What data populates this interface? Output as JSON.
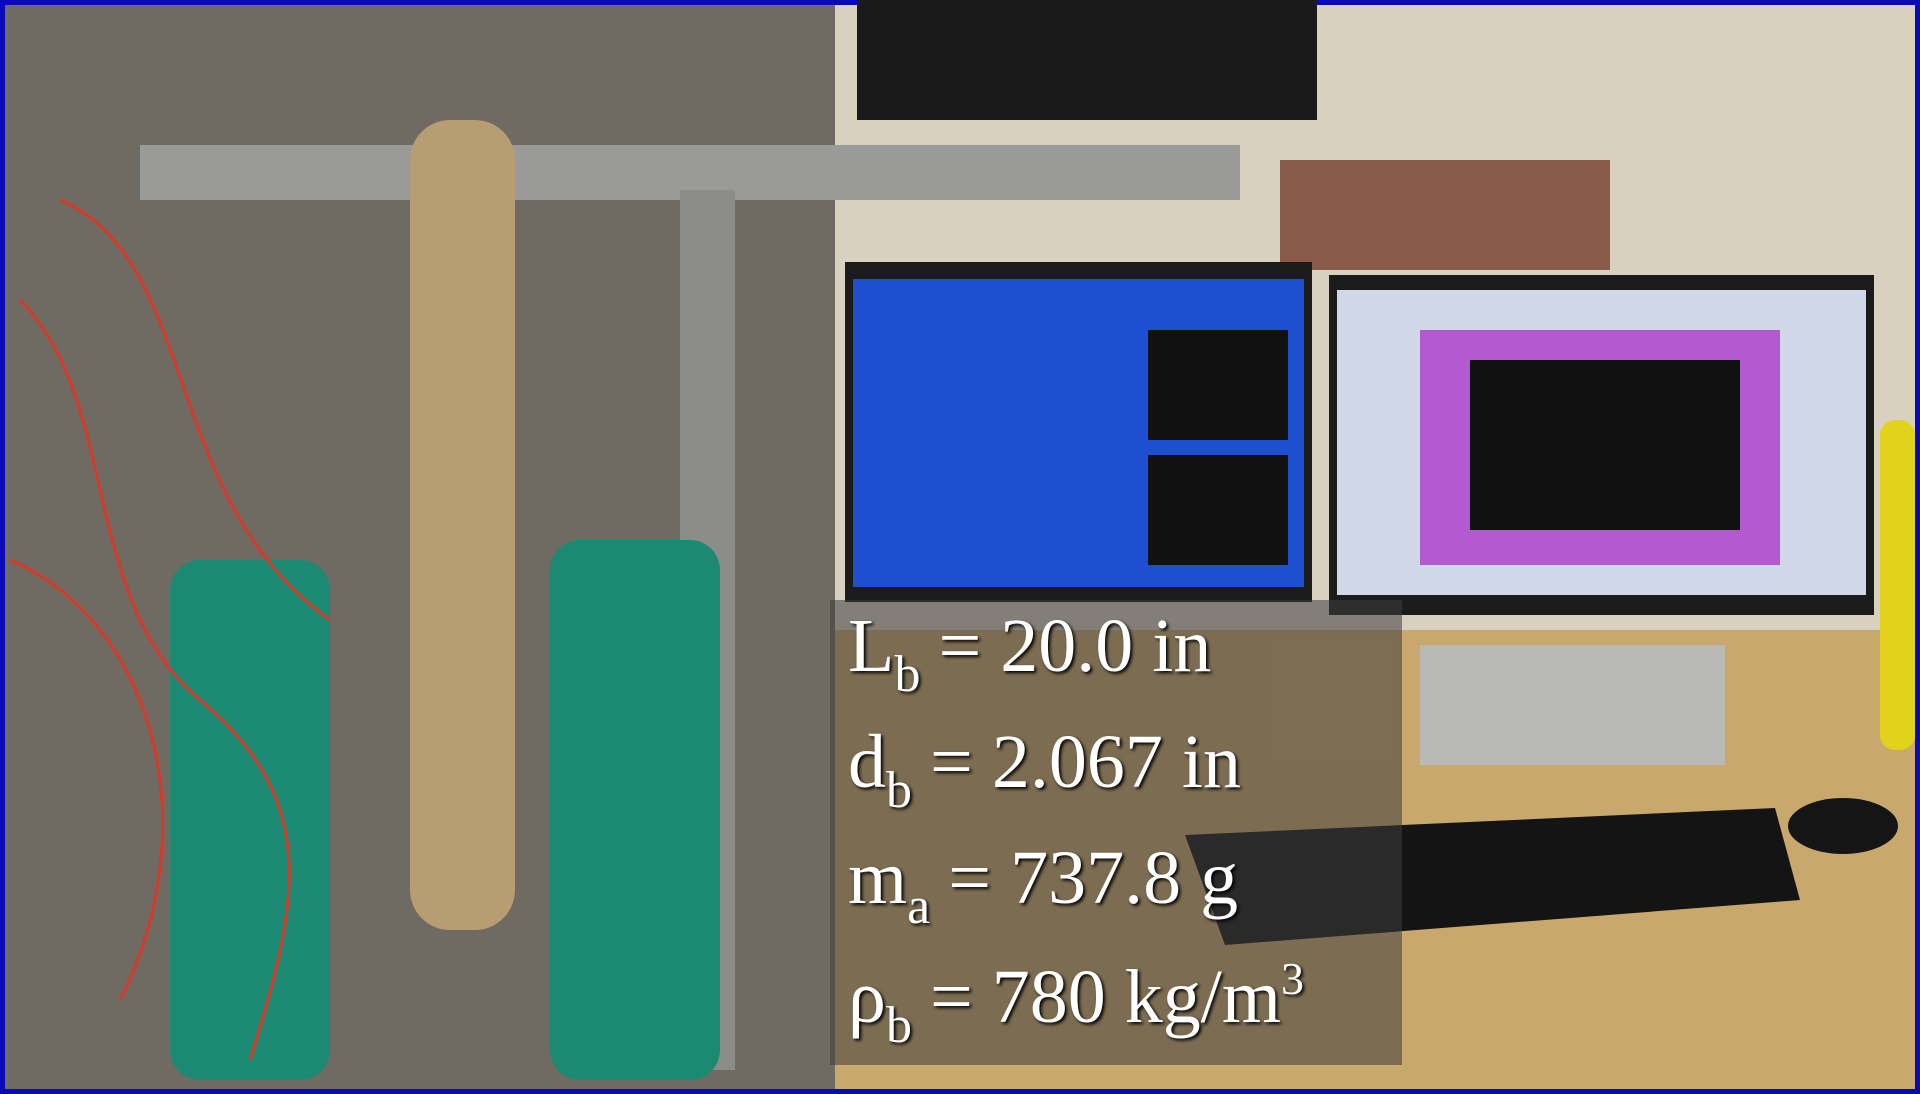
{
  "overlay": {
    "lines": [
      {
        "symbol": "L",
        "subscript": "b",
        "text": "= 20.0 in"
      },
      {
        "symbol": "d",
        "subscript": "b",
        "text": "= 2.067 in"
      },
      {
        "symbol": "m",
        "subscript": "a",
        "text": "= 737.8 g"
      },
      {
        "symbol": "ρ",
        "subscript": "b",
        "text": "= 780 kg/m",
        "superscript": "3"
      }
    ]
  }
}
